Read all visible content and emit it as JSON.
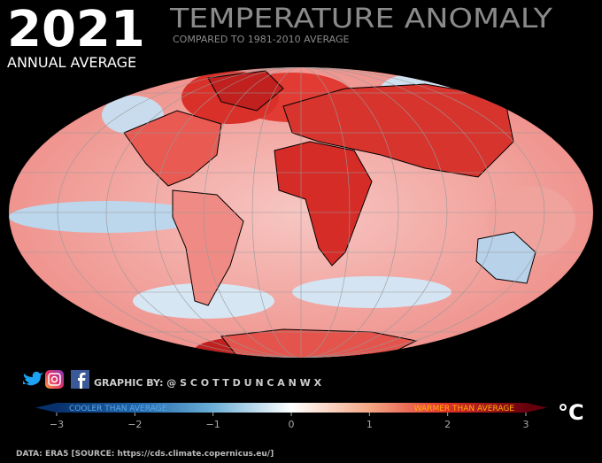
{
  "header": {
    "year": "2021",
    "title": "TEMPERATURE ANOMALY",
    "subtitle": "COMPARED TO 1981-2010 AVERAGE",
    "period": "ANNUAL AVERAGE"
  },
  "credit": "GRAPHIC BY: @ S C O T T D U N C A N W X",
  "colorbar": {
    "lim": [
      -3,
      3
    ],
    "ticks": [
      {
        "value": -3,
        "label": "−3"
      },
      {
        "value": -2,
        "label": "−2"
      },
      {
        "value": -1,
        "label": "−1"
      },
      0,
      1,
      2,
      3
    ],
    "cool_label": "COOLER THAN AVERAGE",
    "warm_label": "WARMER THAN AVERAGE",
    "unit": "°C"
  },
  "source": "DATA: ERA5 [SOURCE: https://cds.climate.copernicus.eu/]"
}
